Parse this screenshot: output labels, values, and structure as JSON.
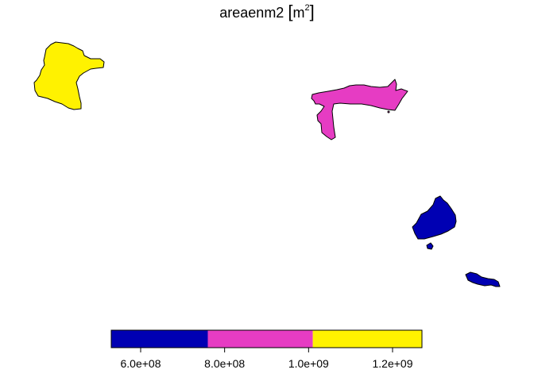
{
  "title": {
    "variable": "areaenm2",
    "unit_open": "[",
    "unit_base": "m",
    "unit_exponent": "2",
    "unit_close": "]"
  },
  "legend": {
    "type": "color-bar",
    "placement": "bottom-center",
    "ticks": [
      {
        "value": 600000000,
        "label": "6.0e+08"
      },
      {
        "value": 800000000,
        "label": "8.0e+08"
      },
      {
        "value": 1000000000,
        "label": "1.0e+09"
      },
      {
        "value": 1200000000,
        "label": "1.2e+09"
      }
    ],
    "bins": [
      {
        "from": 530000000,
        "to": 760000000,
        "color": "#0000B3"
      },
      {
        "from": 760000000,
        "to": 1010000000,
        "color": "#E63CC3"
      },
      {
        "from": 1010000000,
        "to": 1270000000,
        "color": "#FFF200"
      }
    ],
    "range": [
      530000000,
      1270000000
    ]
  },
  "regions": [
    {
      "id": "northwest",
      "color": "#FFF200"
    },
    {
      "id": "north-central",
      "color": "#E63CC3"
    },
    {
      "id": "southeast",
      "color": "#0000B3"
    }
  ],
  "colors": {
    "outline": "#000000",
    "background": "#FFFFFF"
  }
}
